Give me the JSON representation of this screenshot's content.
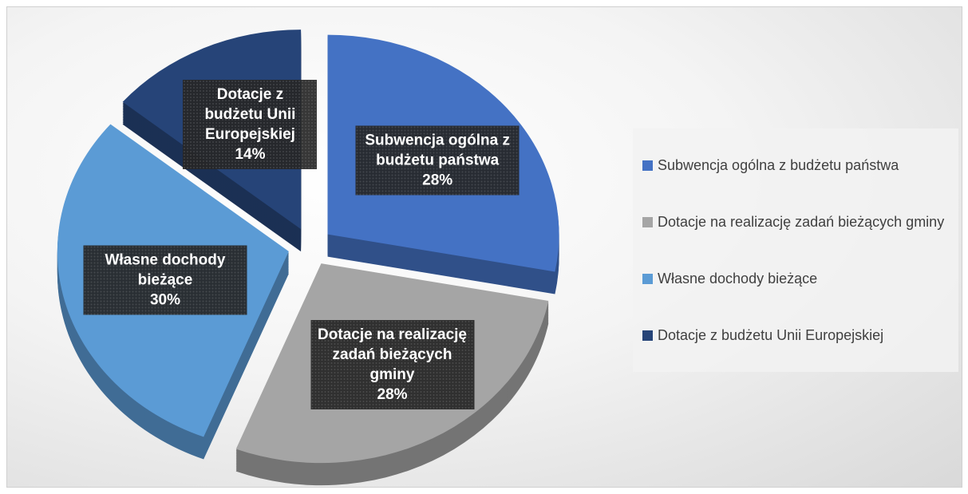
{
  "chart_data": {
    "type": "pie",
    "categories": [
      "Subwencja ogólna z budżetu państwa",
      "Dotacje na realizację zadań bieżących gminy",
      "Własne dochody bieżące",
      "Dotacje z budżetu Unii Europejskiej"
    ],
    "values": [
      28,
      28,
      30,
      14
    ],
    "value_labels": [
      "28%",
      "28%",
      "30%",
      "14%"
    ],
    "colors": [
      "#4472c4",
      "#a5a5a5",
      "#5b9bd5",
      "#264478"
    ],
    "legend": "right"
  }
}
